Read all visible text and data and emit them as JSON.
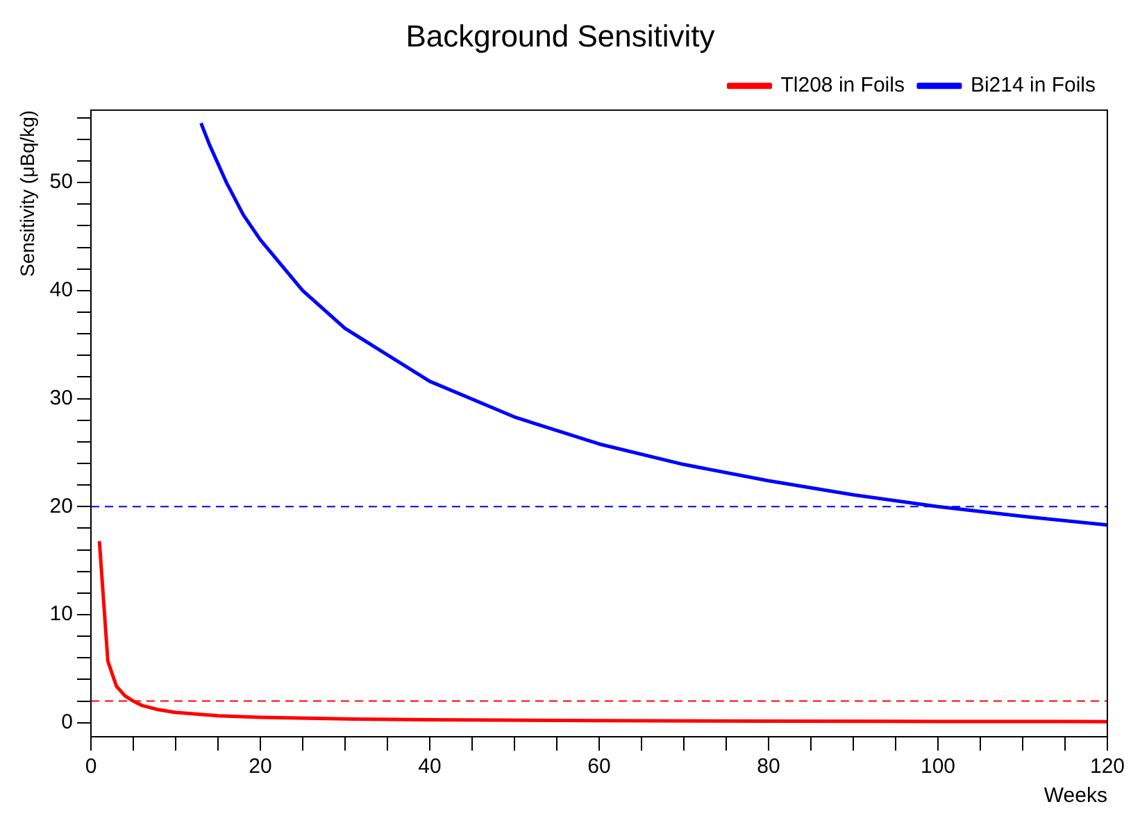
{
  "chart_data": {
    "type": "line",
    "title": "Background Sensitivity",
    "xlabel": "Weeks",
    "ylabel": "Sensitivity (μBq/kg)",
    "xlim": [
      0,
      120
    ],
    "ylim": [
      -1.3,
      56.7
    ],
    "xticks": [
      0,
      {
        "value": 5,
        "label": null
      },
      {
        "value": 10,
        "label": null
      },
      {
        "value": 15,
        "label": null
      },
      20,
      {
        "value": 25,
        "label": null
      },
      {
        "value": 30,
        "label": null
      },
      {
        "value": 35,
        "label": null
      },
      40,
      {
        "value": 45,
        "label": null
      },
      {
        "value": 50,
        "label": null
      },
      {
        "value": 55,
        "label": null
      },
      60,
      {
        "value": 65,
        "label": null
      },
      {
        "value": 70,
        "label": null
      },
      {
        "value": 75,
        "label": null
      },
      80,
      {
        "value": 85,
        "label": null
      },
      {
        "value": 90,
        "label": null
      },
      {
        "value": 95,
        "label": null
      },
      100,
      {
        "value": 105,
        "label": null
      },
      {
        "value": 110,
        "label": null
      },
      {
        "value": 115,
        "label": null
      },
      120
    ],
    "yticks": [
      0,
      {
        "value": 2,
        "label": null
      },
      {
        "value": 4,
        "label": null
      },
      {
        "value": 6,
        "label": null
      },
      {
        "value": 8,
        "label": null
      },
      10,
      {
        "value": 12,
        "label": null
      },
      {
        "value": 14,
        "label": null
      },
      {
        "value": 16,
        "label": null
      },
      {
        "value": 18,
        "label": null
      },
      20,
      {
        "value": 22,
        "label": null
      },
      {
        "value": 24,
        "label": null
      },
      {
        "value": 26,
        "label": null
      },
      {
        "value": 28,
        "label": null
      },
      30,
      {
        "value": 32,
        "label": null
      },
      {
        "value": 34,
        "label": null
      },
      {
        "value": 36,
        "label": null
      },
      {
        "value": 38,
        "label": null
      },
      40,
      {
        "value": 42,
        "label": null
      },
      {
        "value": 44,
        "label": null
      },
      {
        "value": 46,
        "label": null
      },
      {
        "value": 48,
        "label": null
      },
      50,
      {
        "value": 52,
        "label": null
      },
      {
        "value": 54,
        "label": null
      },
      {
        "value": 56,
        "label": null
      }
    ],
    "grid": false,
    "legend": "top right",
    "marker": "none",
    "line_style": "solid",
    "series": [
      {
        "name": "Tl208 in Foils",
        "color": "#ff0000",
        "x": [
          1,
          2,
          3,
          4,
          5,
          6,
          8,
          10,
          15,
          20,
          30,
          40,
          60,
          80,
          100,
          120
        ],
        "values": [
          16.8,
          5.7,
          3.4,
          2.5,
          2.0,
          1.6,
          1.2,
          0.95,
          0.65,
          0.5,
          0.35,
          0.28,
          0.2,
          0.15,
          0.12,
          0.1
        ]
      },
      {
        "name": "Bi214 in Foils",
        "color": "#0000ff",
        "x": [
          13,
          14,
          16,
          18,
          20,
          25,
          30,
          40,
          50,
          60,
          70,
          80,
          90,
          100,
          110,
          120
        ],
        "values": [
          55.5,
          53.5,
          50,
          47,
          44.7,
          40,
          36.5,
          31.6,
          28.3,
          25.8,
          23.9,
          22.4,
          21.1,
          20,
          19.1,
          18.3
        ]
      }
    ],
    "ref_lines": [
      {
        "axis": "y",
        "value": 20,
        "color": "#0000ff",
        "line_style": "dashed"
      },
      {
        "axis": "y",
        "value": 2,
        "color": "#ff0000",
        "line_style": "dashed"
      }
    ]
  }
}
